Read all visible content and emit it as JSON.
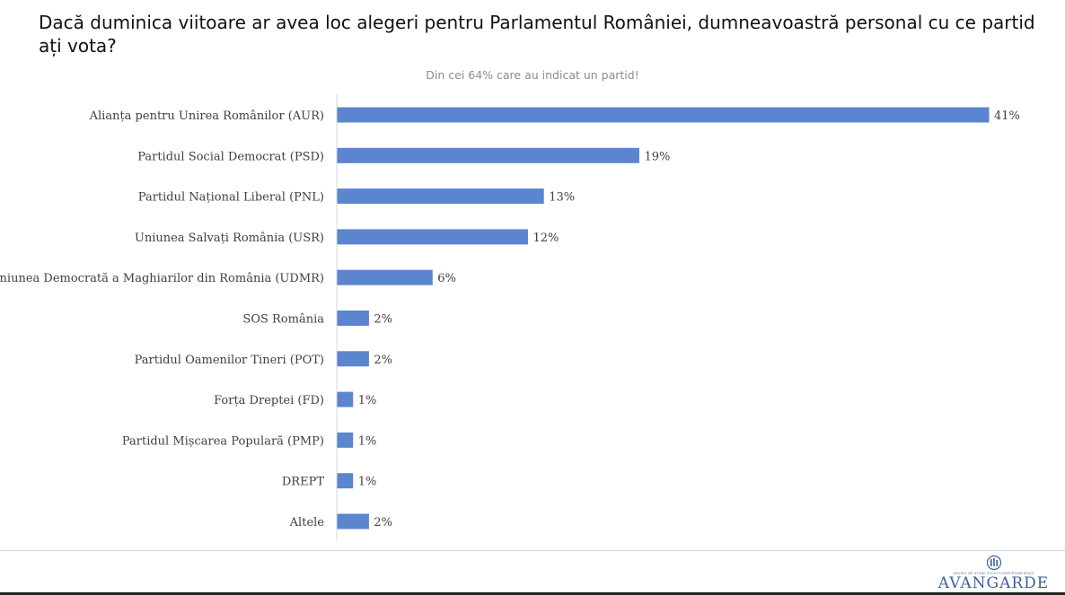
{
  "title": "Dacă duminica viitoare ar avea loc alegeri pentru Parlamentul României, dumneavoastră personal cu ce partid ați vota?",
  "subtitle": "Din cei 64% care au indicat un partid!",
  "logo": {
    "name": "AVANGARDE",
    "tagline": "GRUPUL DE STUDII SOCIO-COMPORTAMENTALE"
  },
  "colors": {
    "bar": "#5b85ce",
    "axis": "#d9d9d9",
    "label": "#404040"
  },
  "chart_data": {
    "type": "bar",
    "orientation": "horizontal",
    "title": "",
    "subtitle": "Din cei 64% care au indicat un partid!",
    "xlabel": "",
    "ylabel": "",
    "xlim": [
      0,
      41
    ],
    "grid": false,
    "legend": "none",
    "value_suffix": "%",
    "categories": [
      "Alianța pentru Unirea Românilor (AUR)",
      "Partidul Social Democrat (PSD)",
      "Partidul Național Liberal (PNL)",
      "Uniunea Salvați România (USR)",
      "Uniunea Democrată a Maghiarilor din România (UDMR)",
      "SOS România",
      "Partidul Oamenilor Tineri (POT)",
      "Forța Dreptei (FD)",
      "Partidul Mișcarea Populară (PMP)",
      "DREPT",
      "Altele"
    ],
    "values": [
      41,
      19,
      13,
      12,
      6,
      2,
      2,
      1,
      1,
      1,
      2
    ]
  }
}
